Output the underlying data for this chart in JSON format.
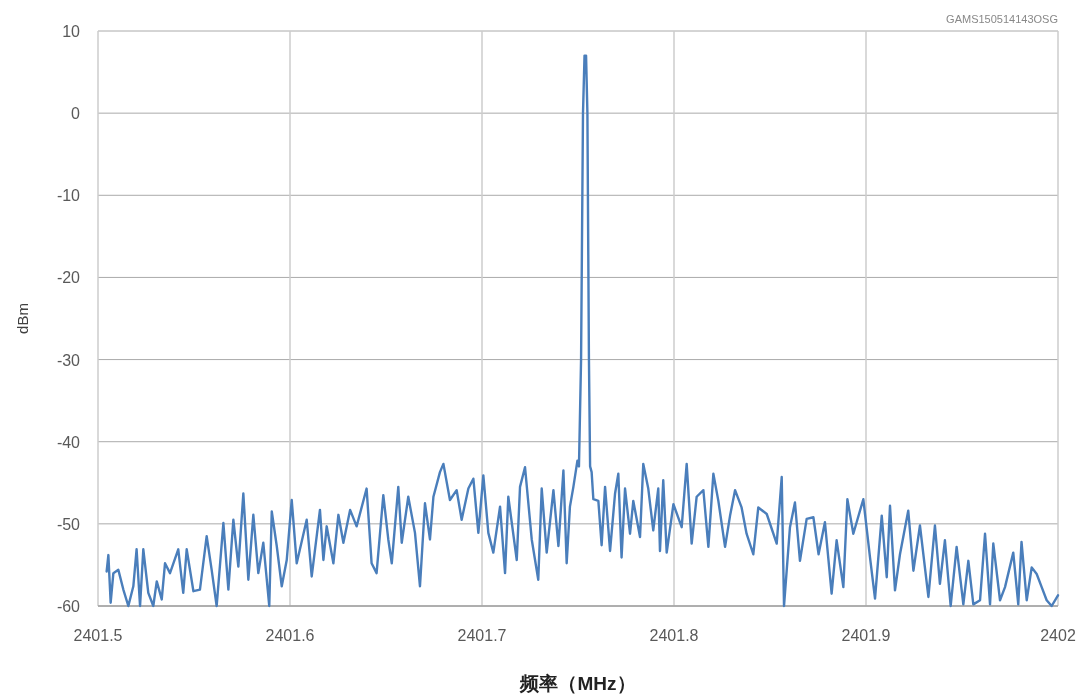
{
  "chart_data": {
    "type": "line",
    "xlabel": "频率（MHz）",
    "ylabel": "dBm",
    "annotations": [
      "GAMS150514143OSG"
    ],
    "xlim": [
      2401.5,
      2402
    ],
    "xticks": [
      2401.5,
      2401.6,
      2401.7,
      2401.8,
      2401.9,
      2402
    ],
    "ylim": [
      -60,
      10
    ],
    "yticks": [
      -60,
      -50,
      -40,
      -30,
      -20,
      -10,
      0,
      10
    ],
    "grid": true,
    "marker": "none",
    "line_style": "solid",
    "series": [
      {
        "color": "#4a7ebb",
        "x": [
          2401.5045,
          2401.5054,
          2401.5066,
          2401.508,
          2401.5106,
          2401.5132,
          2401.5158,
          2401.5184,
          2401.5201,
          2401.5219,
          2401.5236,
          2401.5262,
          2401.5288,
          2401.5306,
          2401.5332,
          2401.5349,
          2401.5375,
          2401.5418,
          2401.5444,
          2401.5462,
          2401.5497,
          2401.5531,
          2401.5566,
          2401.5592,
          2401.5618,
          2401.5653,
          2401.5679,
          2401.5705,
          2401.5731,
          2401.5757,
          2401.5783,
          2401.5809,
          2401.5835,
          2401.5861,
          2401.5892,
          2401.5905,
          2401.5931,
          2401.5957,
          2401.5983,
          2401.6009,
          2401.6035,
          2401.6087,
          2401.6113,
          2401.6156,
          2401.6174,
          2401.6191,
          2401.6226,
          2401.6252,
          2401.6278,
          2401.6313,
          2401.6347,
          2401.6399,
          2401.6425,
          2401.6451,
          2401.6486,
          2401.6512,
          2401.653,
          2401.6564,
          2401.6582,
          2401.6616,
          2401.6651,
          2401.6677,
          2401.6703,
          2401.6729,
          2401.6747,
          2401.6781,
          2401.6799,
          2401.6833,
          2401.6868,
          2401.6894,
          2401.6929,
          2401.6955,
          2401.6981,
          2401.7007,
          2401.7033,
          2401.7059,
          2401.7094,
          2401.712,
          2401.7137,
          2401.7181,
          2401.7198,
          2401.7224,
          2401.7259,
          2401.7293,
          2401.7311,
          2401.7337,
          2401.7372,
          2401.7398,
          2401.7424,
          2401.7441,
          2401.7458,
          2401.7476,
          2401.7497,
          2401.7505,
          2401.7516,
          2401.7526,
          2401.7534,
          2401.7542,
          2401.7549,
          2401.7557,
          2401.7563,
          2401.7571,
          2401.758,
          2401.7606,
          2401.7623,
          2401.7641,
          2401.7667,
          2401.7693,
          2401.771,
          2401.7727,
          2401.7745,
          2401.7771,
          2401.7788,
          2401.7823,
          2401.784,
          2401.7866,
          2401.7892,
          2401.7918,
          2401.7927,
          2401.7944,
          2401.7962,
          2401.7997,
          2401.804,
          2401.8066,
          2401.8092,
          2401.8118,
          2401.8153,
          2401.8179,
          2401.8205,
          2401.8231,
          2401.8266,
          2401.8292,
          2401.8318,
          2401.8352,
          2401.8378,
          2401.8413,
          2401.8439,
          2401.8483,
          2401.8535,
          2401.8561,
          2401.8573,
          2401.8604,
          2401.863,
          2401.8656,
          2401.8691,
          2401.8726,
          2401.8753,
          2401.8786,
          2401.8821,
          2401.8847,
          2401.8882,
          2401.8903,
          2401.8934,
          2401.8986,
          2401.9021,
          2401.9047,
          2401.9082,
          2401.9108,
          2401.9125,
          2401.9151,
          2401.9177,
          2401.922,
          2401.9247,
          2401.9281,
          2401.9325,
          2401.9359,
          2401.9385,
          2401.9411,
          2401.9441,
          2401.9472,
          2401.9507,
          2401.9533,
          2401.9559,
          2401.9594,
          2401.962,
          2401.9646,
          2401.9663,
          2401.9698,
          2401.9724,
          2401.9767,
          2401.9793,
          2401.981,
          2401.9837,
          2401.9863,
          2401.9889,
          2401.9915,
          2401.9941,
          2401.9967,
          2402
        ],
        "values": [
          -55.8,
          -53.8,
          -59.6,
          -56,
          -55.6,
          -58,
          -60,
          -57.6,
          -53.1,
          -60,
          -53.1,
          -58.4,
          -60,
          -57,
          -59.2,
          -54.8,
          -56,
          -53.1,
          -58.4,
          -53.1,
          -58.2,
          -58,
          -51.5,
          -55.6,
          -60,
          -49.9,
          -58,
          -49.5,
          -55.2,
          -46.3,
          -56.8,
          -48.9,
          -56,
          -52.3,
          -60,
          -48.5,
          -52.7,
          -57.6,
          -54.4,
          -47.1,
          -54.8,
          -49.5,
          -56.4,
          -48.3,
          -54.4,
          -50.3,
          -54.8,
          -48.9,
          -52.3,
          -48.3,
          -50.3,
          -45.7,
          -54.8,
          -56,
          -46.5,
          -51.9,
          -54.8,
          -45.5,
          -52.3,
          -46.7,
          -51.1,
          -57.6,
          -47.5,
          -51.9,
          -46.7,
          -43.7,
          -42.7,
          -47.1,
          -45.9,
          -49.5,
          -45.7,
          -44.5,
          -51.1,
          -44.1,
          -51.1,
          -53.5,
          -47.9,
          -56,
          -46.7,
          -54.4,
          -45.5,
          -43.1,
          -51.9,
          -56.8,
          -45.7,
          -53.5,
          -45.9,
          -52.7,
          -43.5,
          -54.8,
          -47.9,
          -45.5,
          -42.3,
          -43,
          -30,
          0,
          7,
          7,
          0,
          -30,
          -43,
          -43.7,
          -47,
          -47.2,
          -52.6,
          -45.5,
          -53.3,
          -46.3,
          -43.9,
          -54.1,
          -45.7,
          -51.2,
          -47.2,
          -51.6,
          -42.7,
          -45.7,
          -50.8,
          -45.7,
          -53.3,
          -44.7,
          -53.5,
          -47.6,
          -50.4,
          -42.7,
          -52.4,
          -46.7,
          -45.9,
          -52.8,
          -43.9,
          -47.2,
          -52.8,
          -49,
          -45.9,
          -48,
          -51.2,
          -53.7,
          -48,
          -48.8,
          -52.4,
          -44.3,
          -60,
          -50.4,
          -47.4,
          -54.5,
          -49.4,
          -49.2,
          -53.7,
          -49.8,
          -58.5,
          -52,
          -57.7,
          -47,
          -51.2,
          -47,
          -54.1,
          -59.1,
          -49,
          -56.5,
          -47.8,
          -58.1,
          -53.7,
          -48.4,
          -55.7,
          -50.2,
          -58.9,
          -50.2,
          -57.3,
          -52,
          -60,
          -52.8,
          -59.8,
          -54.5,
          -59.8,
          -59.3,
          -51.2,
          -59.8,
          -52.4,
          -59.3,
          -57.7,
          -53.5,
          -59.8,
          -52.2,
          -59.3,
          -55.3,
          -56.1,
          -57.7,
          -59.3,
          -60,
          -58.7
        ]
      }
    ]
  }
}
